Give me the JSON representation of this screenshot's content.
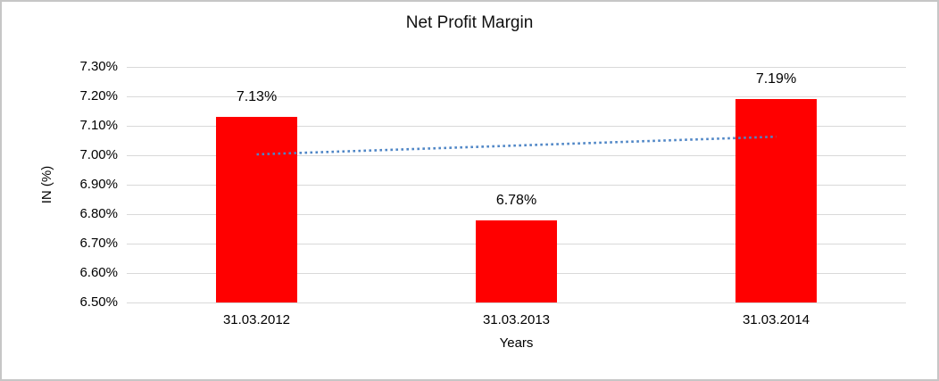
{
  "window": {
    "background": "#ffffff",
    "border_color": "#c6c6c6"
  },
  "chart_data": {
    "type": "bar",
    "title": "Net Profit Margin",
    "xlabel": "Years",
    "ylabel": "IN (%)",
    "categories": [
      "31.03.2012",
      "31.03.2013",
      "31.03.2014"
    ],
    "values": [
      7.13,
      6.78,
      7.19
    ],
    "data_labels": [
      "7.13%",
      "6.78%",
      "7.19%"
    ],
    "ylim": [
      6.5,
      7.3
    ],
    "ytick_step": 0.1,
    "ytick_labels": [
      "7.30%",
      "7.20%",
      "7.10%",
      "7.00%",
      "6.90%",
      "6.80%",
      "6.70%",
      "6.60%",
      "6.50%"
    ],
    "grid": true,
    "legend": "none",
    "bar_color": "#ff0000",
    "gridline_color": "#d9d9d9",
    "text_color": "#000000",
    "trendline": {
      "type": "linear",
      "style": "dotted",
      "color": "#4f86c6",
      "start_value": 7.003,
      "end_value": 7.063
    }
  }
}
